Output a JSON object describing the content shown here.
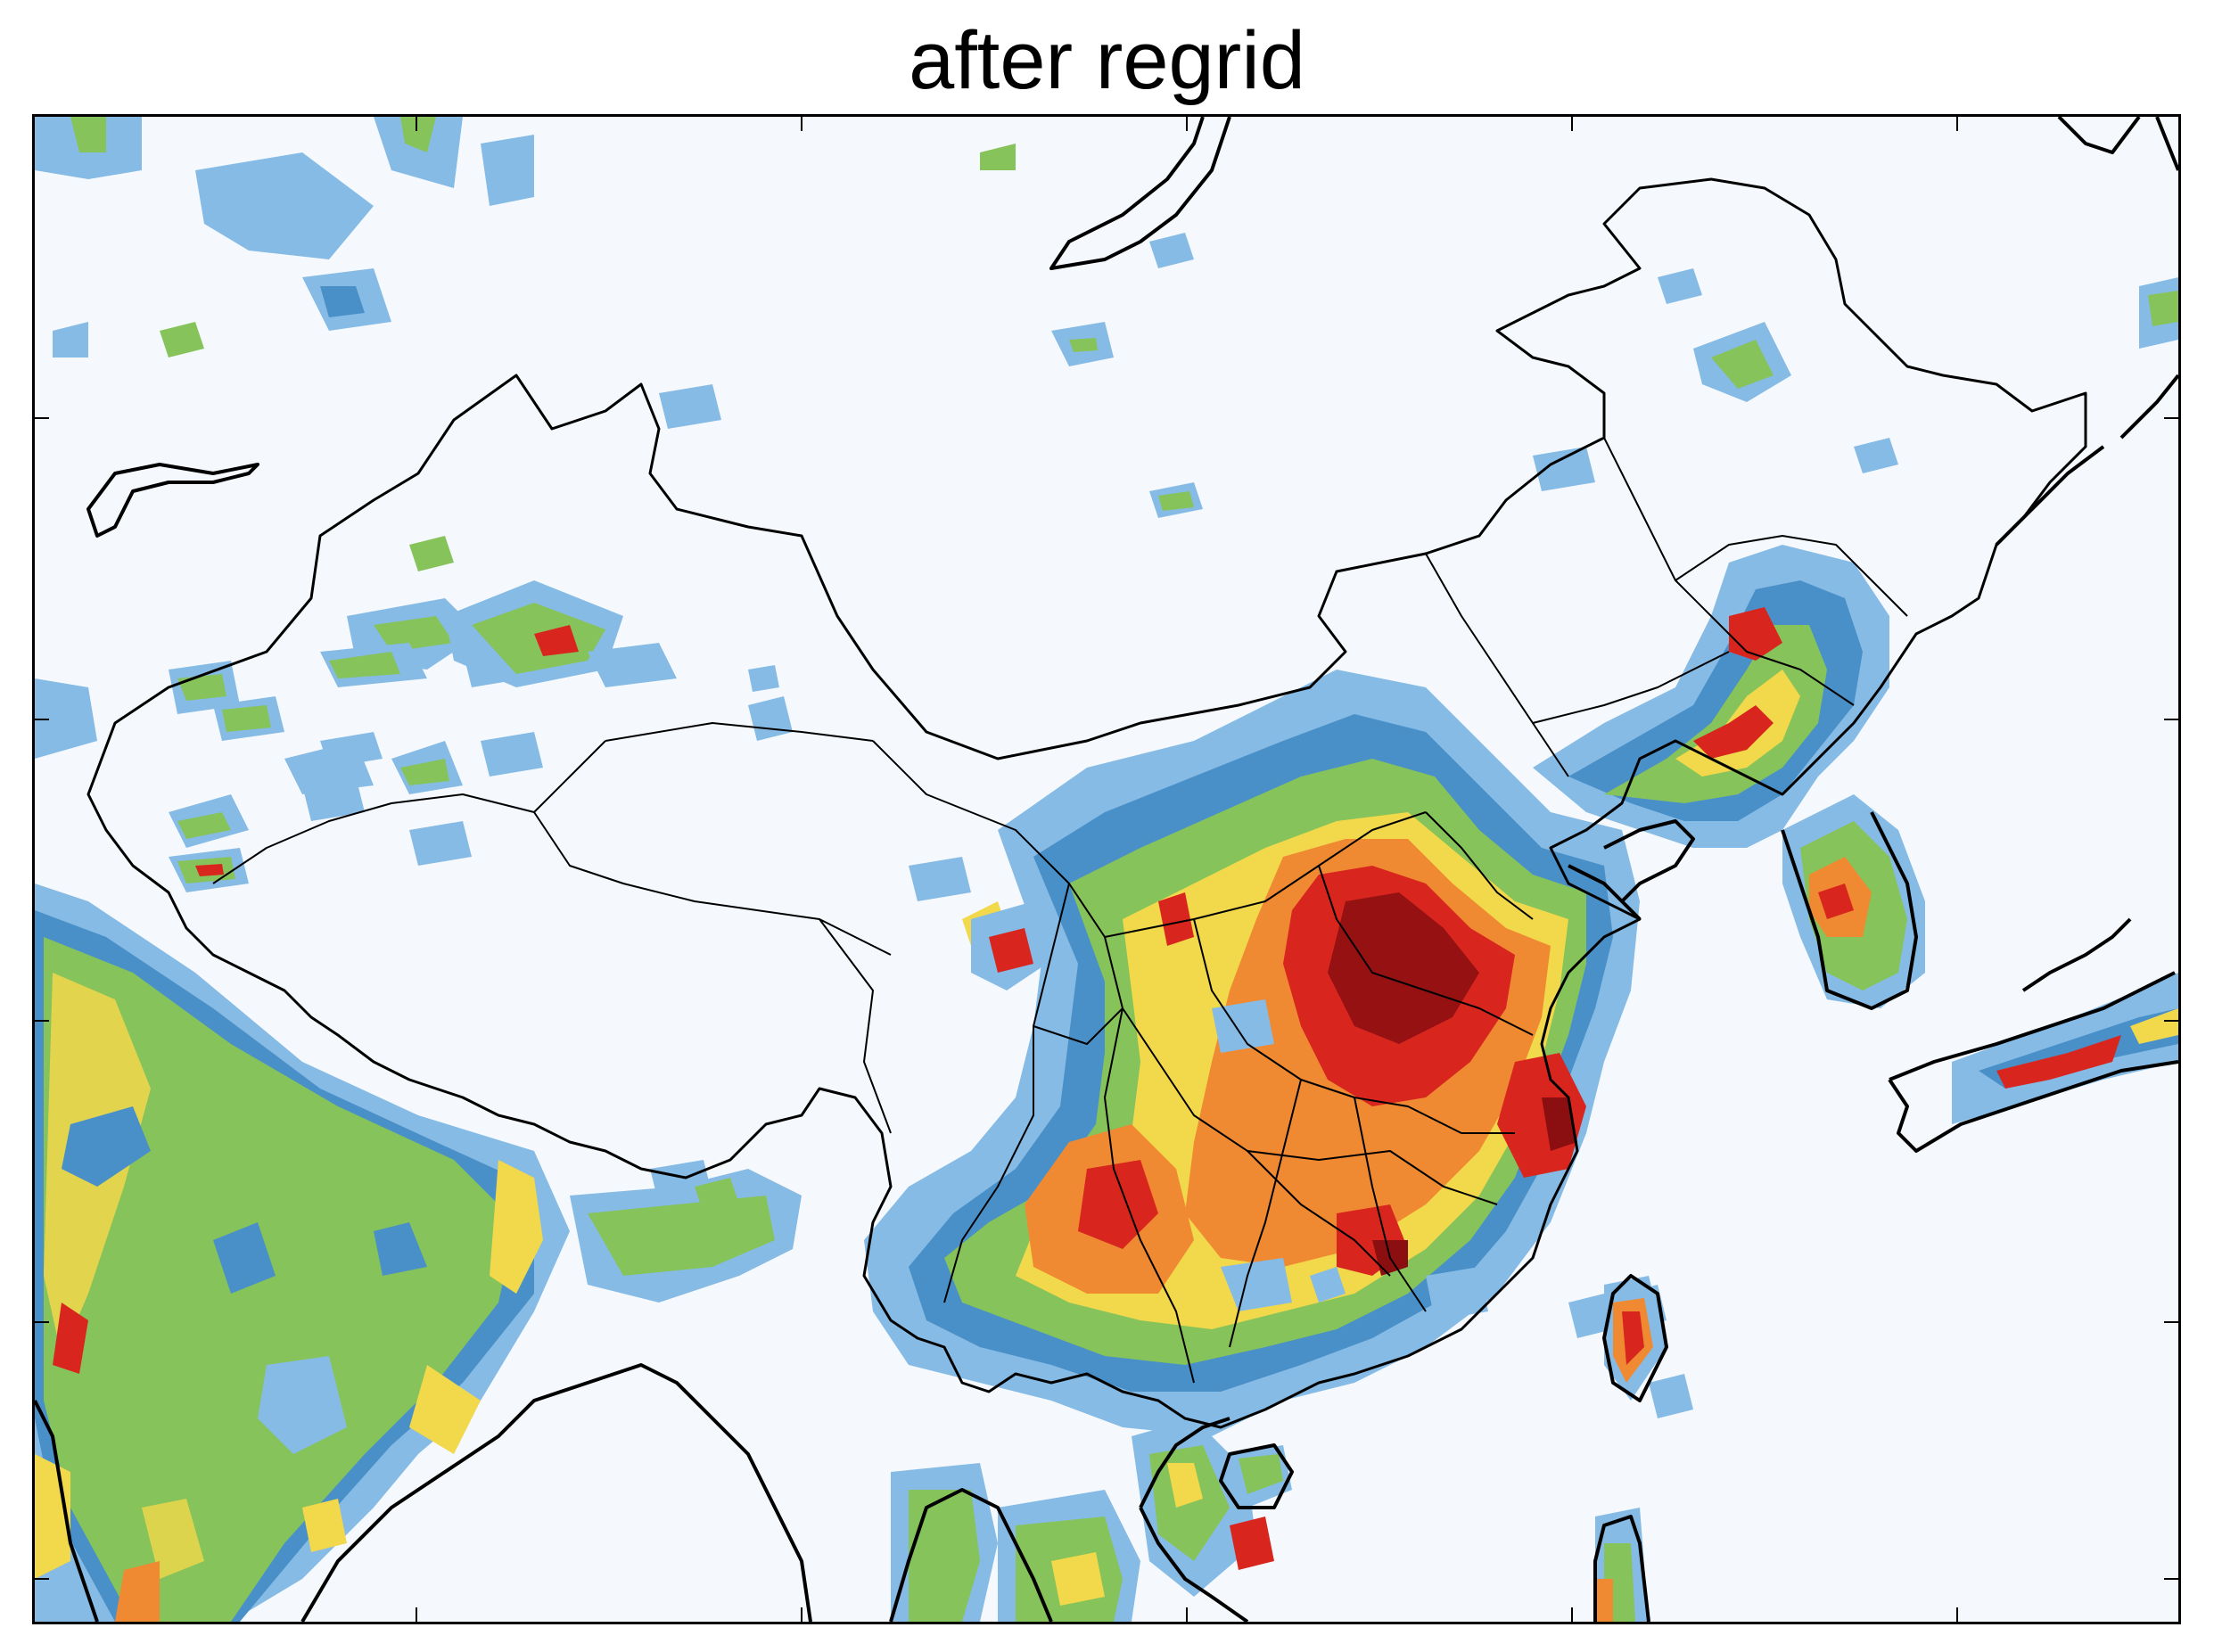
{
  "title": "after regrid",
  "map": {
    "type": "filled-contour",
    "colors": {
      "background": "#f5f9fd",
      "level1": "#86bbe5",
      "level2": "#4a90c8",
      "level3": "#86c35a",
      "level4": "#f2d84b",
      "level5": "#f08a32",
      "level6": "#d8261f",
      "level7": "#8b0f10",
      "outline": "#000000"
    },
    "grid": true
  }
}
